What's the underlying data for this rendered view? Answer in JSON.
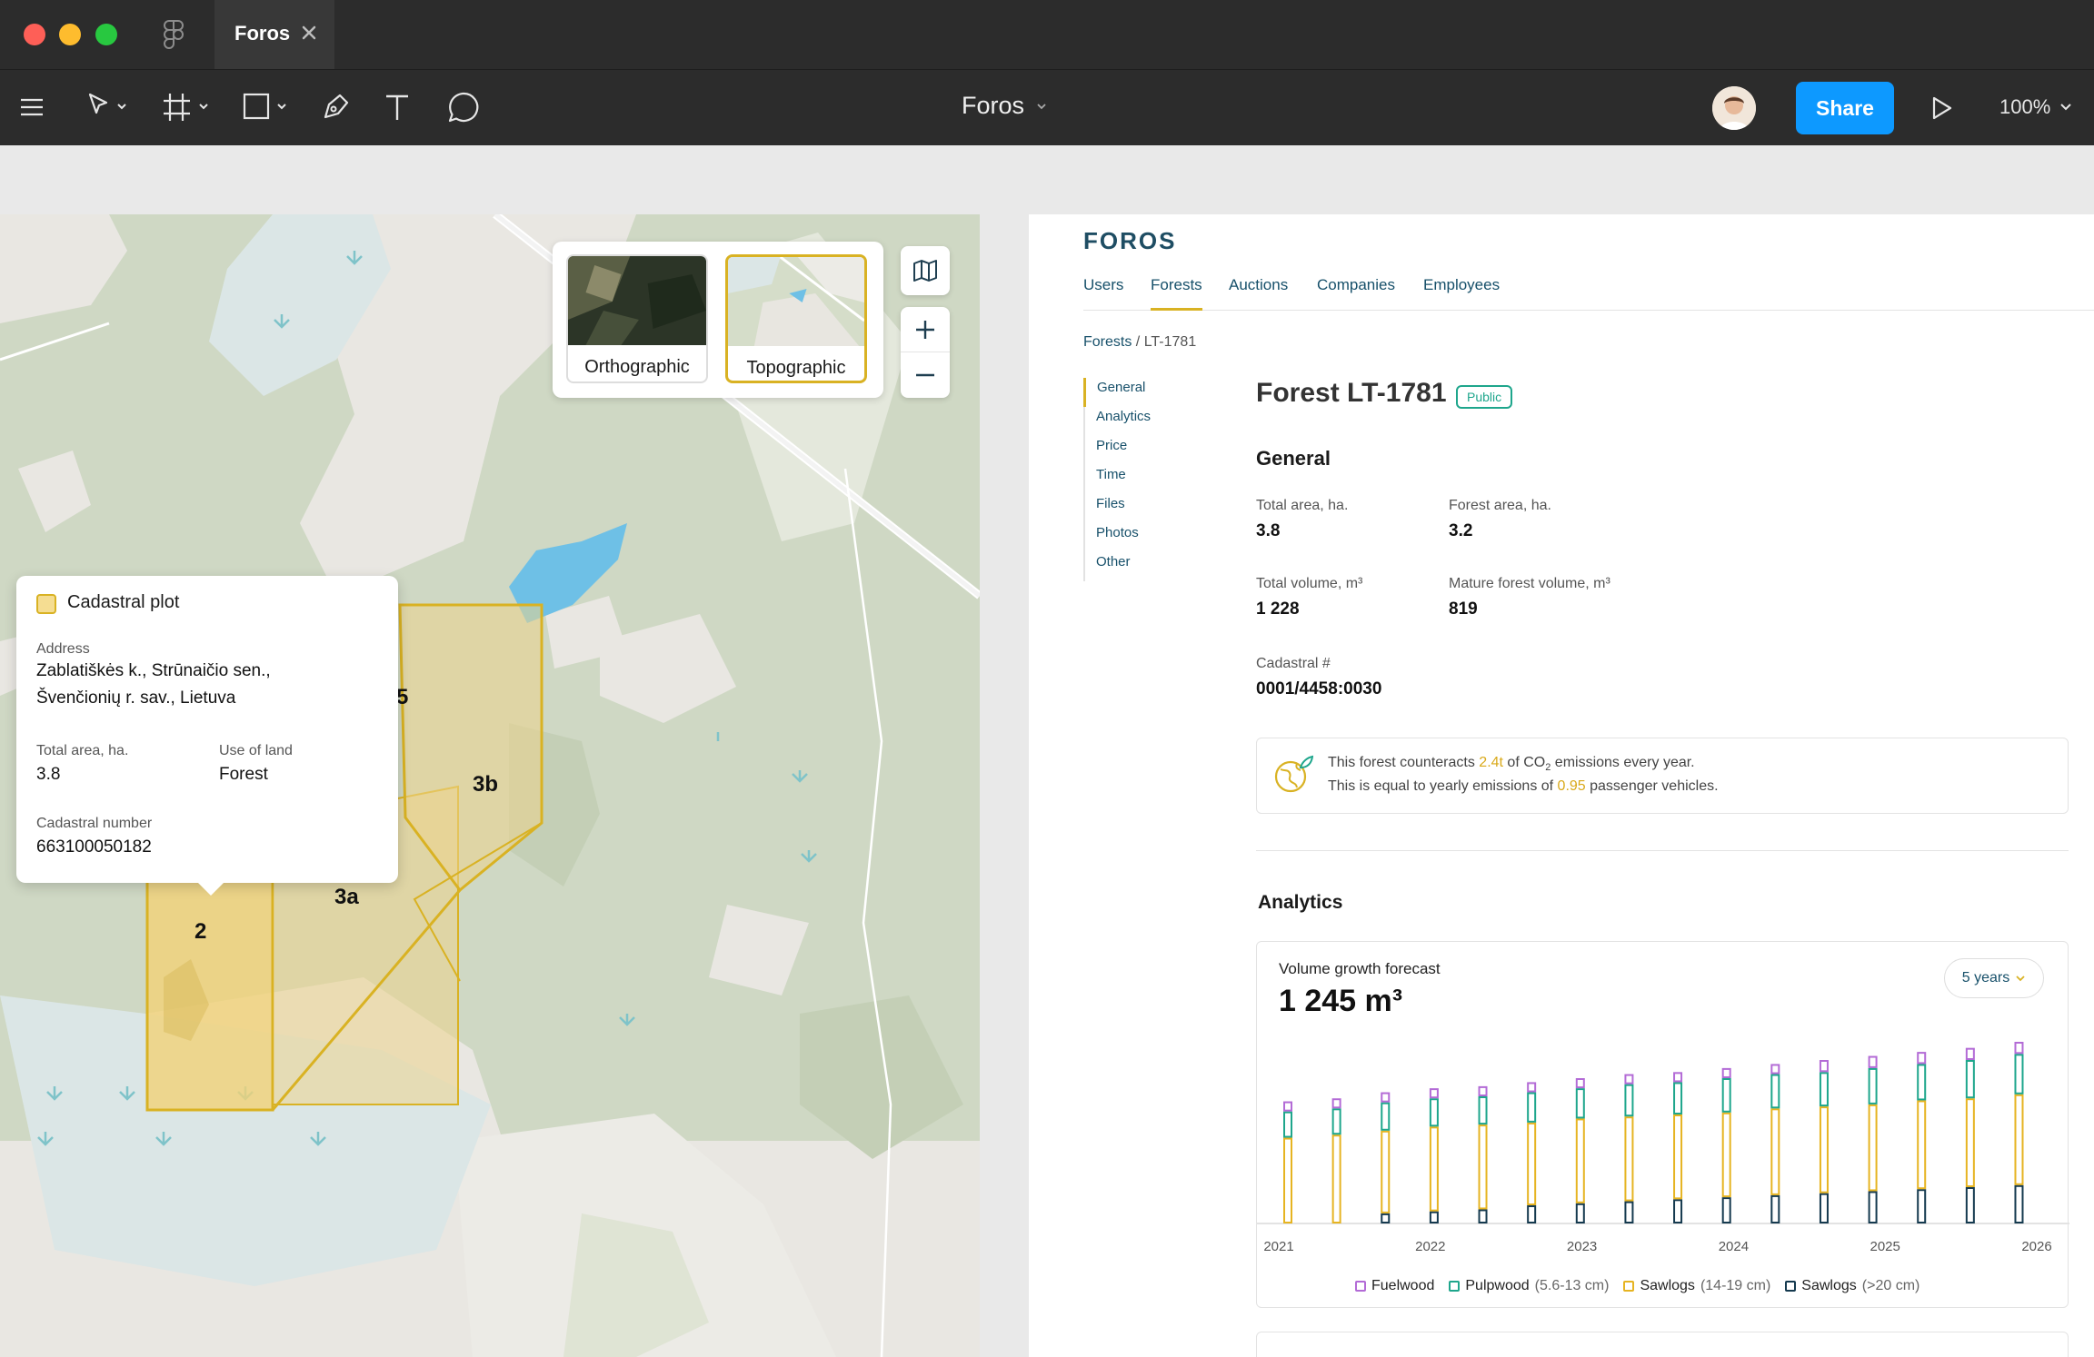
{
  "figma": {
    "tab_title": "Foros",
    "file_title": "Foros",
    "share_label": "Share",
    "zoom_level": "100%",
    "tools": [
      "menu-icon",
      "move-icon",
      "frame-icon",
      "shape-icon",
      "pen-icon",
      "text-icon",
      "comment-icon"
    ]
  },
  "map": {
    "layers": [
      {
        "label": "Orthographic",
        "selected": false
      },
      {
        "label": "Topographic",
        "selected": true
      }
    ],
    "plot_labels": [
      "2",
      "3a",
      "3b",
      "5"
    ],
    "popup": {
      "title": "Cadastral plot",
      "address_label": "Address",
      "address_line1": "Zablatiškės k., Strūnaičio sen.,",
      "address_line2": "Švenčionių r. sav., Lietuva",
      "total_area_label": "Total area, ha.",
      "total_area": "3.8",
      "use_label": "Use of land",
      "use_value": "Forest",
      "cadastral_label": "Cadastral number",
      "cadastral_value": "663100050182"
    }
  },
  "app": {
    "brand": "FOROS",
    "nav": [
      "Users",
      "Forests",
      "Auctions",
      "Companies",
      "Employees"
    ],
    "active_nav": "Forests",
    "breadcrumb": {
      "parent": "Forests",
      "separator": "/",
      "current": "LT-1781"
    },
    "side_nav": [
      "General",
      "Analytics",
      "Price",
      "Time",
      "Files",
      "Photos",
      "Other"
    ],
    "title": "Forest LT-1781",
    "badge": "Public",
    "general": {
      "heading": "General",
      "total_area_label": "Total area, ha.",
      "total_area": "3.8",
      "forest_area_label": "Forest area, ha.",
      "forest_area": "3.2",
      "total_volume_label": "Total volume, m³",
      "total_volume": "1 228",
      "mature_volume_label": "Mature forest volume, m³",
      "mature_volume": "819",
      "cadastral_label": "Cadastral #",
      "cadastral": "0001/4458:0030"
    },
    "co2": {
      "line1_pre": "This forest counteracts ",
      "line1_value": "2.4t",
      "line1_mid": " of CO",
      "line1_sub": "2",
      "line1_post": " emissions every year.",
      "line2_pre": "This is equal to yearly emissions of ",
      "line2_value": "0.95",
      "line2_post": " passenger vehicles."
    },
    "analytics": {
      "heading": "Analytics",
      "chart_title": "Volume growth forecast",
      "chart_total": "1 245 m³",
      "period": "5 years"
    }
  },
  "colors": {
    "accent": "#d9b223",
    "brand": "#17506a",
    "fuelwood": "#b36bd6",
    "pulpwood": "#1ea68c",
    "sawlogs_small": "#e6b422",
    "sawlogs_large": "#153a4f"
  },
  "chart_data": {
    "type": "bar",
    "stacked": true,
    "x_tick_labels": [
      "2021",
      "2022",
      "2023",
      "2024",
      "2025",
      "2026"
    ],
    "bar_count": 16,
    "series": [
      {
        "name": "Sawlogs (>20 cm)",
        "color": "#153a4f",
        "values": [
          0,
          0,
          10,
          12,
          14,
          18,
          20,
          22,
          24,
          26,
          28,
          30,
          32,
          34,
          36,
          38
        ]
      },
      {
        "name": "Sawlogs (14-19 cm)",
        "color": "#e6b422",
        "values": [
          85,
          88,
          82,
          84,
          84,
          82,
          84,
          84,
          84,
          84,
          86,
          86,
          86,
          88,
          88,
          90
        ]
      },
      {
        "name": "Pulpwood (5.6-13 cm)",
        "color": "#1ea68c",
        "values": [
          26,
          26,
          28,
          28,
          28,
          30,
          30,
          32,
          32,
          34,
          34,
          34,
          36,
          36,
          38,
          40
        ]
      },
      {
        "name": "Fuelwood",
        "color": "#b36bd6",
        "values": [
          10,
          10,
          10,
          10,
          10,
          10,
          10,
          10,
          10,
          10,
          10,
          12,
          12,
          12,
          12,
          12
        ]
      }
    ],
    "legend": [
      {
        "name": "Fuelwood",
        "detail": ""
      },
      {
        "name": "Pulpwood",
        "detail": "(5.6-13 cm)"
      },
      {
        "name": "Sawlogs",
        "detail": "(14-19 cm)"
      },
      {
        "name": "Sawlogs",
        "detail": "(>20 cm)"
      }
    ],
    "ylim": [
      0,
      180
    ],
    "grid": false,
    "legend_position": "bottom"
  }
}
